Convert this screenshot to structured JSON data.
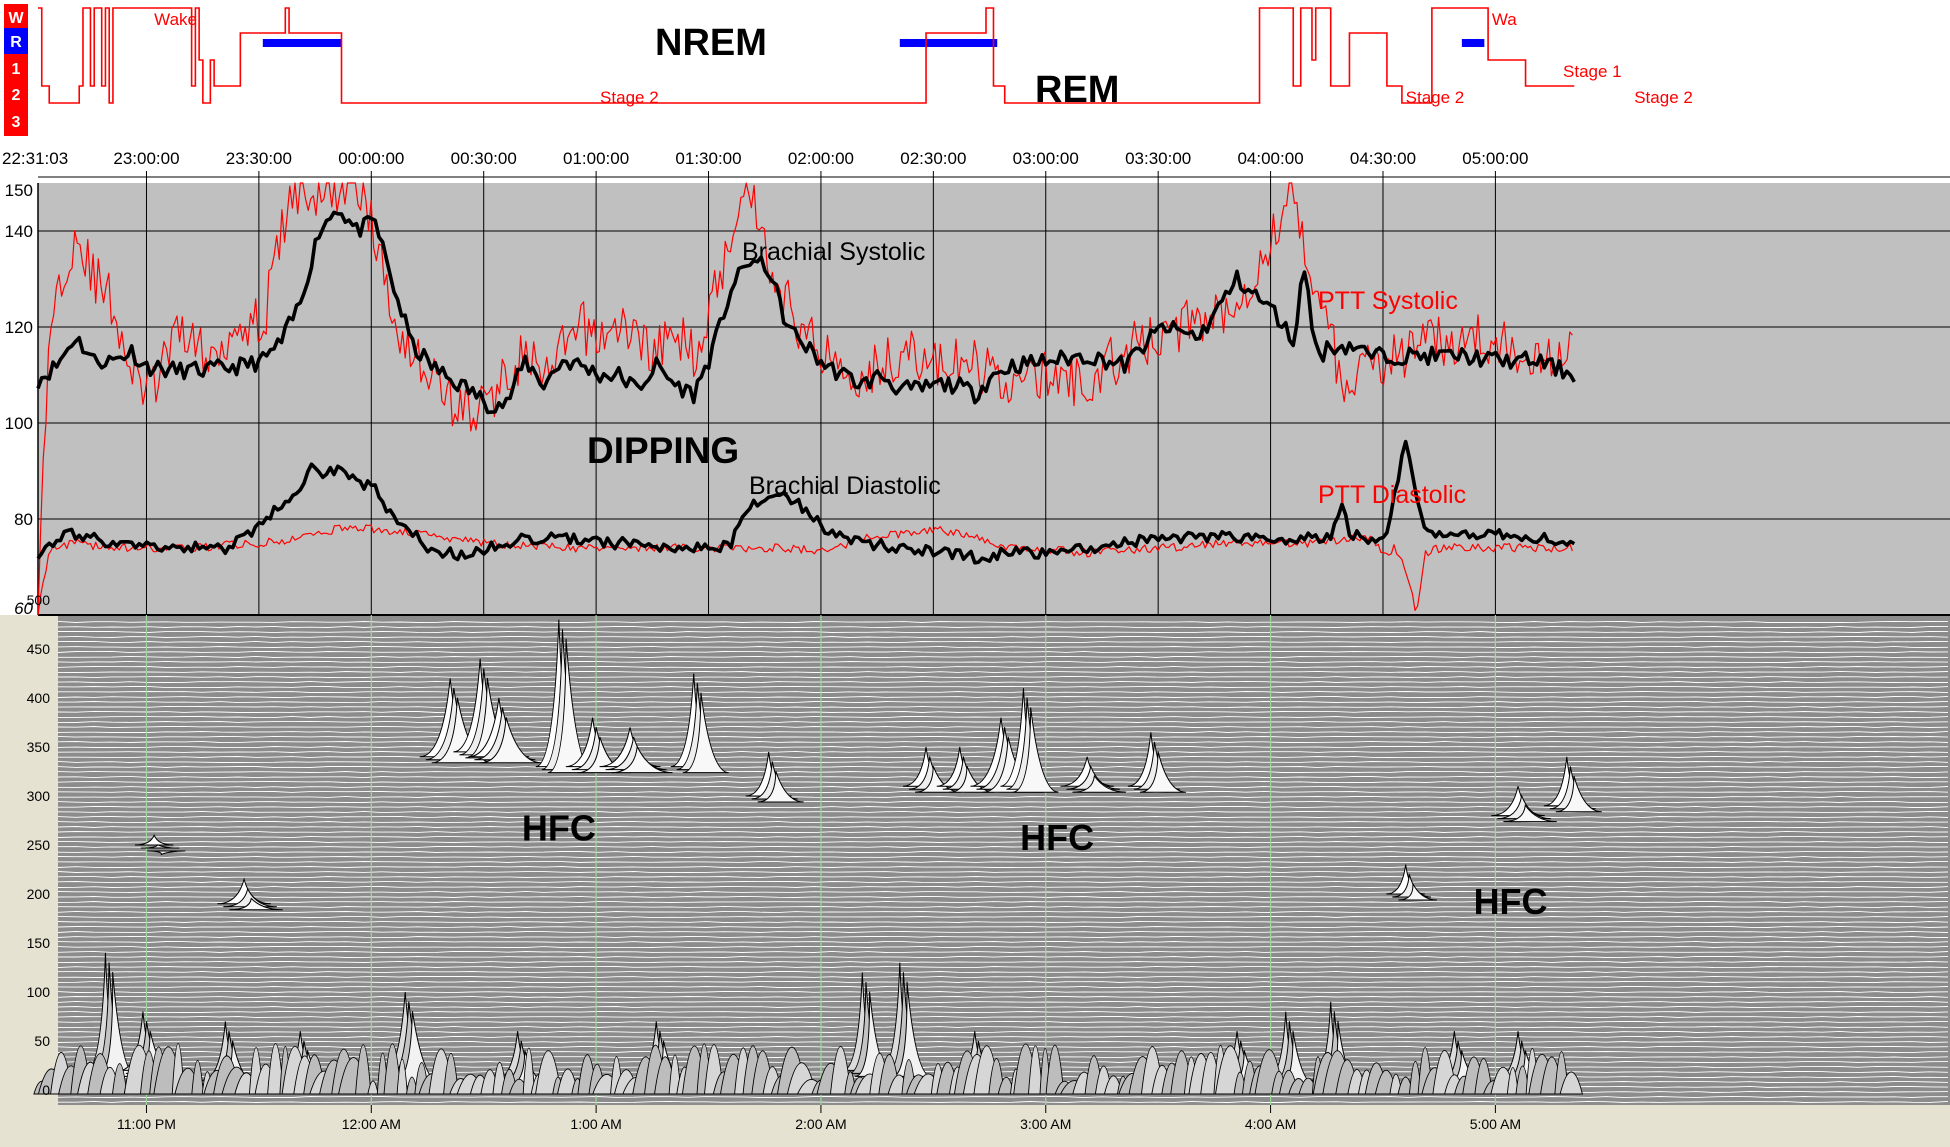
{
  "hypnogram": {
    "axis_labels": [
      "W",
      "R",
      "1",
      "2",
      "3"
    ],
    "stage_labels": [
      {
        "text": "Wake",
        "time_min": 31.0,
        "level": "W"
      },
      {
        "text": "Stage 2",
        "time_min": 150.0,
        "level": "2"
      },
      {
        "text": "Stage 2",
        "time_min": 365.0,
        "level": "2"
      },
      {
        "text": "Wa",
        "time_min": 388.0,
        "level": "W"
      },
      {
        "text": "Stage 1",
        "time_min": 407.0,
        "level": "1"
      },
      {
        "text": "Stage 2",
        "time_min": 426.0,
        "level": "2"
      }
    ],
    "annotations": [
      "NREM",
      "REM"
    ],
    "rem_bars_min": [
      [
        60,
        81
      ],
      [
        230,
        256
      ],
      [
        380,
        386
      ]
    ],
    "levels": [
      {
        "t": 0,
        "s": "W"
      },
      {
        "t": 1,
        "s": "2"
      },
      {
        "t": 3,
        "s": "3"
      },
      {
        "t": 11,
        "s": "2"
      },
      {
        "t": 12,
        "s": "W"
      },
      {
        "t": 14,
        "s": "2"
      },
      {
        "t": 15,
        "s": "W"
      },
      {
        "t": 17,
        "s": "2"
      },
      {
        "t": 18,
        "s": "W"
      },
      {
        "t": 19,
        "s": "3"
      },
      {
        "t": 20,
        "s": "W"
      },
      {
        "t": 41,
        "s": "2"
      },
      {
        "t": 42,
        "s": "W"
      },
      {
        "t": 43,
        "s": "1"
      },
      {
        "t": 44,
        "s": "3"
      },
      {
        "t": 46,
        "s": "1"
      },
      {
        "t": 47,
        "s": "2"
      },
      {
        "t": 54,
        "s": "R"
      },
      {
        "t": 66,
        "s": "W"
      },
      {
        "t": 67,
        "s": "R"
      },
      {
        "t": 81,
        "s": "3"
      },
      {
        "t": 237,
        "s": "R"
      },
      {
        "t": 253,
        "s": "W"
      },
      {
        "t": 255,
        "s": "2"
      },
      {
        "t": 258,
        "s": "3"
      },
      {
        "t": 326,
        "s": "W"
      },
      {
        "t": 335,
        "s": "2"
      },
      {
        "t": 337,
        "s": "W"
      },
      {
        "t": 340,
        "s": "1"
      },
      {
        "t": 341,
        "s": "W"
      },
      {
        "t": 345,
        "s": "2"
      },
      {
        "t": 350,
        "s": "R"
      },
      {
        "t": 360,
        "s": "2"
      },
      {
        "t": 364,
        "s": "3"
      },
      {
        "t": 372,
        "s": "W"
      },
      {
        "t": 387,
        "s": "1"
      },
      {
        "t": 397,
        "s": "2"
      },
      {
        "t": 410,
        "s": "2"
      }
    ]
  },
  "time_axis": {
    "start_label": "22:31:03",
    "ticks": [
      {
        "label": "23:00:00",
        "min": 28.95
      },
      {
        "label": "23:30:00",
        "min": 58.95
      },
      {
        "label": "00:00:00",
        "min": 88.95
      },
      {
        "label": "00:30:00",
        "min": 118.95
      },
      {
        "label": "01:00:00",
        "min": 148.95
      },
      {
        "label": "01:30:00",
        "min": 178.95
      },
      {
        "label": "02:00:00",
        "min": 208.95
      },
      {
        "label": "02:30:00",
        "min": 238.95
      },
      {
        "label": "03:00:00",
        "min": 268.95
      },
      {
        "label": "03:30:00",
        "min": 298.95
      },
      {
        "label": "04:00:00",
        "min": 328.95
      },
      {
        "label": "04:30:00",
        "min": 358.95
      },
      {
        "label": "05:00:00",
        "min": 388.95
      }
    ]
  },
  "chart_data": [
    {
      "type": "line",
      "name": "blood-pressure",
      "x_unit": "minutes from 22:31:03",
      "xlim": [
        0,
        410
      ],
      "ylim": [
        60,
        150
      ],
      "yticks": [
        60,
        80,
        100,
        120,
        140,
        150
      ],
      "grid": true,
      "labels": [
        "Brachial Systolic",
        "PTT Systolic",
        "DIPPING",
        "Brachial Diastolic",
        "PTT Diastolic"
      ],
      "series": [
        {
          "name": "Brachial Systolic",
          "color": "#000000",
          "x": [
            0,
            5,
            10,
            15,
            20,
            25,
            28,
            35,
            45,
            55,
            60,
            65,
            70,
            75,
            80,
            85,
            90,
            95,
            100,
            105,
            110,
            115,
            120,
            125,
            130,
            135,
            140,
            145,
            150,
            155,
            160,
            165,
            170,
            175,
            180,
            185,
            190,
            195,
            200,
            205,
            210,
            215,
            220,
            225,
            230,
            235,
            240,
            245,
            250,
            255,
            260,
            270,
            280,
            290,
            300,
            310,
            320,
            330,
            335,
            338,
            340,
            342,
            345,
            350,
            352,
            355,
            360,
            370,
            380,
            390,
            400,
            410
          ],
          "y": [
            109,
            112,
            118,
            113,
            113,
            115,
            112,
            111,
            111,
            112,
            113,
            117,
            125,
            140,
            145,
            140,
            142,
            128,
            116,
            112,
            109,
            107,
            104,
            104,
            113,
            108,
            113,
            112,
            110,
            110,
            107,
            112,
            108,
            106,
            115,
            128,
            134,
            132,
            120,
            116,
            112,
            110,
            108,
            110,
            107,
            107,
            108,
            108,
            106,
            110,
            112,
            113,
            114,
            112,
            120,
            118,
            130,
            123,
            117,
            133,
            120,
            114,
            116,
            116,
            116,
            114,
            114,
            114,
            114,
            113,
            113,
            110
          ]
        },
        {
          "name": "PTT Systolic",
          "color": "#ff0000",
          "x": [
            0,
            3,
            6,
            10,
            15,
            20,
            25,
            30,
            35,
            40,
            45,
            50,
            55,
            60,
            65,
            70,
            75,
            78,
            80,
            83,
            86,
            90,
            95,
            100,
            105,
            110,
            115,
            120,
            125,
            130,
            135,
            140,
            145,
            150,
            155,
            160,
            165,
            170,
            175,
            180,
            185,
            188,
            192,
            196,
            200,
            205,
            210,
            215,
            220,
            225,
            230,
            240,
            250,
            260,
            270,
            280,
            290,
            300,
            310,
            320,
            330,
            335,
            338,
            341,
            345,
            350,
            355,
            360,
            370,
            380,
            390,
            400,
            410
          ],
          "y": [
            60,
            120,
            130,
            140,
            130,
            125,
            110,
            106,
            115,
            120,
            112,
            118,
            122,
            120,
            140,
            150,
            145,
            150,
            148,
            150,
            150,
            138,
            122,
            115,
            110,
            105,
            102,
            104,
            110,
            115,
            108,
            115,
            120,
            118,
            120,
            118,
            115,
            118,
            115,
            125,
            140,
            150,
            145,
            130,
            125,
            118,
            115,
            112,
            110,
            112,
            115,
            112,
            112,
            108,
            110,
            108,
            115,
            118,
            122,
            125,
            140,
            150,
            135,
            130,
            118,
            102,
            115,
            113,
            116,
            118,
            116,
            115,
            114
          ]
        },
        {
          "name": "Brachial Diastolic",
          "color": "#000000",
          "x": [
            0,
            5,
            10,
            20,
            30,
            40,
            50,
            55,
            60,
            65,
            70,
            72,
            75,
            78,
            80,
            85,
            90,
            95,
            100,
            105,
            110,
            115,
            120,
            130,
            140,
            150,
            160,
            170,
            180,
            185,
            190,
            195,
            200,
            205,
            210,
            215,
            220,
            230,
            240,
            250,
            260,
            270,
            280,
            290,
            300,
            310,
            315,
            320,
            325,
            330,
            340,
            345,
            348,
            350,
            355,
            360,
            365,
            368,
            370,
            375,
            380,
            390,
            400,
            410
          ],
          "y": [
            73,
            76,
            77,
            75,
            74,
            74,
            74,
            76,
            79,
            83,
            86,
            91,
            89,
            90,
            90,
            88,
            86,
            80,
            77,
            73,
            73,
            72,
            74,
            76,
            76,
            75,
            75,
            74,
            74,
            75,
            83,
            84,
            85,
            82,
            78,
            76,
            75,
            74,
            73,
            72,
            73,
            73,
            74,
            75,
            76,
            76,
            77,
            76,
            76,
            76,
            76,
            76,
            84,
            77,
            76,
            76,
            97,
            84,
            78,
            77,
            77,
            77,
            76,
            75
          ]
        },
        {
          "name": "PTT Diastolic",
          "color": "#ff0000",
          "x": [
            0,
            3,
            5,
            10,
            20,
            40,
            60,
            70,
            80,
            90,
            100,
            110,
            120,
            140,
            160,
            180,
            200,
            210,
            220,
            230,
            240,
            250,
            260,
            280,
            300,
            320,
            340,
            350,
            355,
            358,
            360,
            362,
            365,
            368,
            370,
            375,
            380,
            390,
            400,
            410
          ],
          "y": [
            60,
            74,
            74,
            75,
            74,
            74,
            75,
            76,
            78,
            78,
            77,
            76,
            75,
            74,
            74,
            74,
            74,
            73,
            76,
            77,
            78,
            76,
            74,
            73,
            74,
            75,
            75,
            76,
            76,
            74,
            72,
            74,
            70,
            60,
            73,
            74,
            74,
            74,
            74,
            74
          ]
        }
      ]
    },
    {
      "type": "area",
      "name": "hfc-spectrogram",
      "ylim": [
        0,
        500
      ],
      "yticks": [
        0,
        50,
        100,
        150,
        200,
        250,
        300,
        350,
        400,
        450,
        500
      ],
      "x_ticks": [
        {
          "label": "11:00 PM",
          "min": 28.95
        },
        {
          "label": "12:00 AM",
          "min": 88.95
        },
        {
          "label": "1:00 AM",
          "min": 148.95
        },
        {
          "label": "2:00 AM",
          "min": 208.95
        },
        {
          "label": "3:00 AM",
          "min": 268.95
        },
        {
          "label": "4:00 AM",
          "min": 328.95
        },
        {
          "label": "5:00 AM",
          "min": 388.95
        }
      ],
      "annotations": [
        {
          "text": "HFC",
          "min": 139,
          "freq": 270
        },
        {
          "text": "HFC",
          "min": 272,
          "freq": 260
        },
        {
          "text": "HFC",
          "min": 393,
          "freq": 195
        }
      ],
      "peaks": [
        {
          "t": 110,
          "f": 340,
          "h": 80,
          "w": 6
        },
        {
          "t": 118,
          "f": 345,
          "h": 95,
          "w": 5
        },
        {
          "t": 123,
          "f": 340,
          "h": 60,
          "w": 6
        },
        {
          "t": 139,
          "f": 330,
          "h": 150,
          "w": 4
        },
        {
          "t": 148,
          "f": 330,
          "h": 50,
          "w": 5
        },
        {
          "t": 158,
          "f": 330,
          "h": 40,
          "w": 6
        },
        {
          "t": 175,
          "f": 330,
          "h": 95,
          "w": 4
        },
        {
          "t": 195,
          "f": 300,
          "h": 45,
          "w": 4
        },
        {
          "t": 237,
          "f": 310,
          "h": 40,
          "w": 4
        },
        {
          "t": 246,
          "f": 310,
          "h": 40,
          "w": 4
        },
        {
          "t": 257,
          "f": 310,
          "h": 70,
          "w": 6
        },
        {
          "t": 263,
          "f": 310,
          "h": 100,
          "w": 4
        },
        {
          "t": 280,
          "f": 310,
          "h": 30,
          "w": 5
        },
        {
          "t": 297,
          "f": 310,
          "h": 55,
          "w": 4
        },
        {
          "t": 395,
          "f": 280,
          "h": 30,
          "w": 5
        },
        {
          "t": 408,
          "f": 290,
          "h": 50,
          "w": 4
        },
        {
          "t": 55,
          "f": 190,
          "h": 25,
          "w": 5
        },
        {
          "t": 31,
          "f": 250,
          "h": 10,
          "w": 3
        },
        {
          "t": 365,
          "f": 200,
          "h": 30,
          "w": 3
        },
        {
          "t": 18,
          "f": 20,
          "h": 120,
          "w": 3
        },
        {
          "t": 28,
          "f": 20,
          "h": 60,
          "w": 4
        },
        {
          "t": 50,
          "f": 10,
          "h": 60,
          "w": 4
        },
        {
          "t": 70,
          "f": 10,
          "h": 50,
          "w": 4
        },
        {
          "t": 98,
          "f": 10,
          "h": 90,
          "w": 5
        },
        {
          "t": 128,
          "f": 10,
          "h": 50,
          "w": 4
        },
        {
          "t": 165,
          "f": 10,
          "h": 60,
          "w": 4
        },
        {
          "t": 220,
          "f": 20,
          "h": 100,
          "w": 3
        },
        {
          "t": 230,
          "f": 20,
          "h": 110,
          "w": 3
        },
        {
          "t": 250,
          "f": 10,
          "h": 50,
          "w": 4
        },
        {
          "t": 320,
          "f": 10,
          "h": 50,
          "w": 4
        },
        {
          "t": 333,
          "f": 10,
          "h": 70,
          "w": 3
        },
        {
          "t": 345,
          "f": 10,
          "h": 80,
          "w": 3
        },
        {
          "t": 378,
          "f": 10,
          "h": 50,
          "w": 4
        },
        {
          "t": 395,
          "f": 10,
          "h": 50,
          "w": 4
        }
      ]
    }
  ],
  "colors": {
    "accent_red": "#ff0000",
    "rem_blue": "#0000ff",
    "panel_gray": "#c0c0c0",
    "hfc_band_gray": "#8c8c8c"
  }
}
